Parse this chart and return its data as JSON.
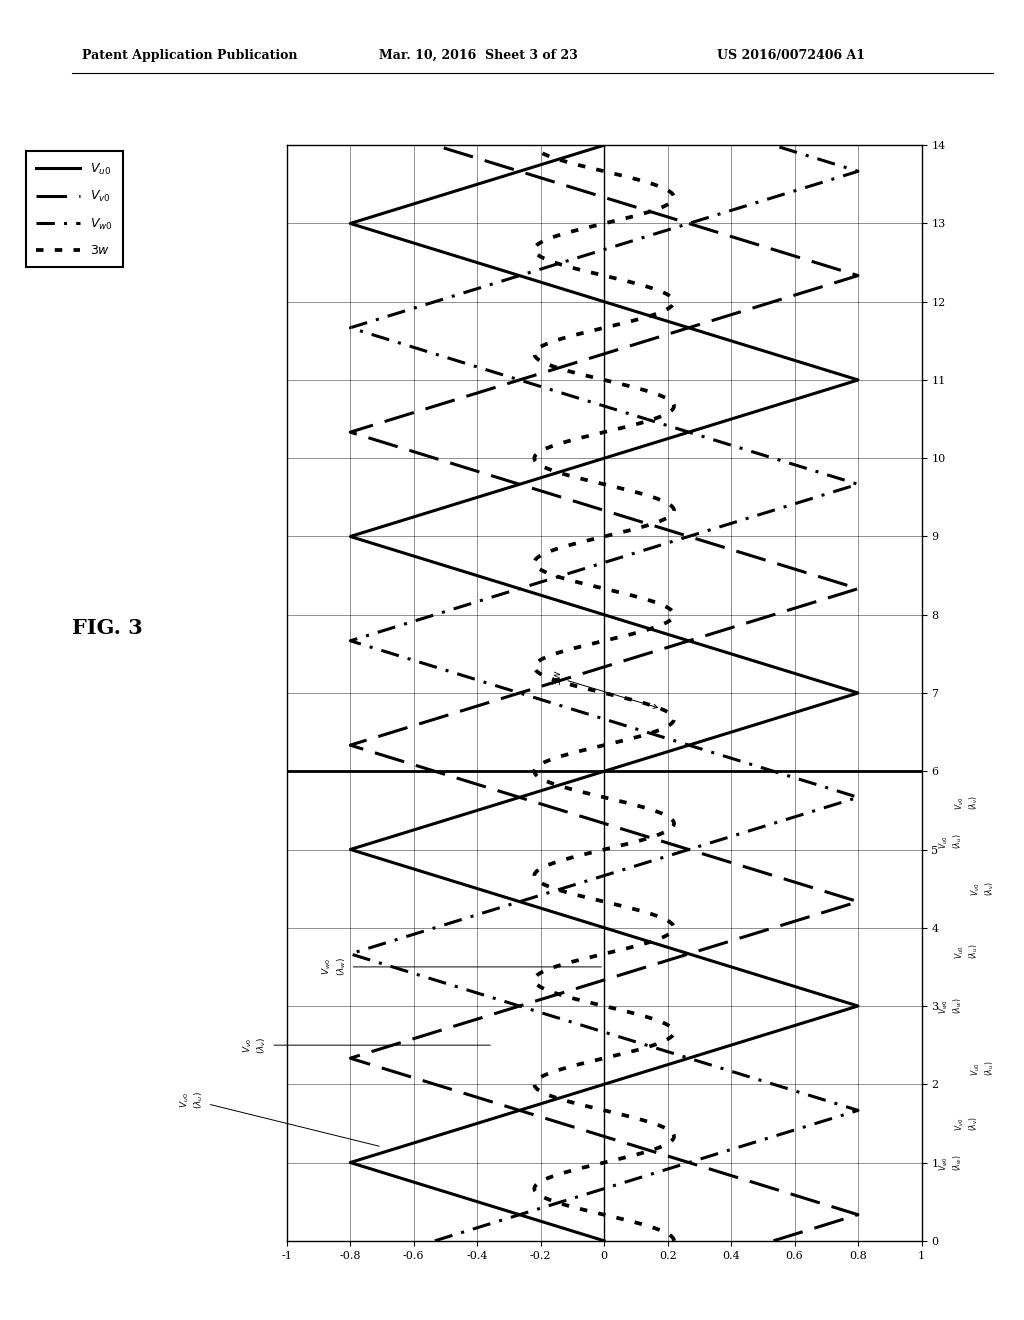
{
  "header_left": "Patent Application Publication",
  "header_middle": "Mar. 10, 2016  Sheet 3 of 23",
  "header_right": "US 2016/0072406 A1",
  "fig_label": "FIG. 3",
  "legend_entries": [
    "V_u0",
    "V_v0",
    "V_w0",
    "3w"
  ],
  "y_ticks": [
    0,
    1,
    2,
    3,
    4,
    5,
    6,
    7,
    8,
    9,
    10,
    11,
    12,
    13,
    14
  ],
  "x_ticks": [
    -1,
    -0.8,
    -0.6,
    -0.4,
    -0.2,
    0,
    0.2,
    0.4,
    0.6,
    0.8,
    1
  ],
  "amplitude": 0.8,
  "period": 4,
  "background_color": "#ffffff",
  "line_color": "#000000"
}
